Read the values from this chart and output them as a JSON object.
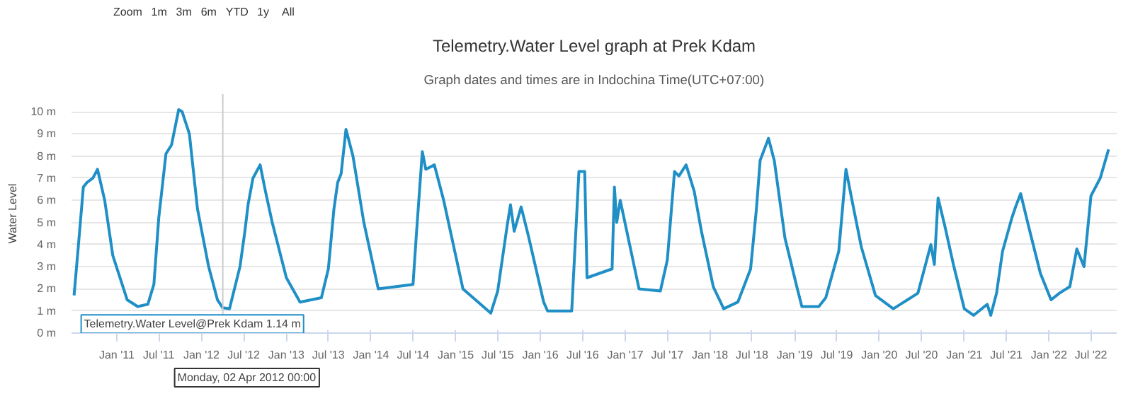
{
  "chart_data": {
    "type": "line",
    "title": "Telemetry.Water Level graph at Prek Kdam",
    "subtitle": "Graph dates and times are in Indochina Time(UTC+07:00)",
    "ylabel": "Water Level",
    "x": [
      "2010-07-01",
      "2010-07-20",
      "2010-08-10",
      "2010-08-25",
      "2010-09-20",
      "2010-10-10",
      "2010-11-10",
      "2010-12-15",
      "2011-02-15",
      "2011-04-01",
      "2011-05-15",
      "2011-06-10",
      "2011-07-01",
      "2011-08-01",
      "2011-08-25",
      "2011-09-25",
      "2011-10-10",
      "2011-11-10",
      "2011-12-15",
      "2012-02-01",
      "2012-03-10",
      "2012-04-02",
      "2012-05-01",
      "2012-06-15",
      "2012-07-05",
      "2012-07-20",
      "2012-08-10",
      "2012-09-10",
      "2012-10-01",
      "2012-11-01",
      "2013-01-01",
      "2013-03-01",
      "2013-06-01",
      "2013-07-01",
      "2013-07-25",
      "2013-08-10",
      "2013-08-25",
      "2013-09-15",
      "2013-10-15",
      "2013-12-01",
      "2014-02-01",
      "2014-07-01",
      "2014-07-15",
      "2014-08-10",
      "2014-08-25",
      "2014-10-01",
      "2014-11-10",
      "2015-02-01",
      "2015-06-01",
      "2015-07-01",
      "2015-08-10",
      "2015-08-25",
      "2015-09-10",
      "2015-10-10",
      "2015-11-10",
      "2016-01-15",
      "2016-02-01",
      "2016-05-15",
      "2016-06-15",
      "2016-07-10",
      "2016-07-20",
      "2016-11-05",
      "2016-11-15",
      "2016-11-25",
      "2016-12-10",
      "2017-03-01",
      "2017-06-01",
      "2017-07-01",
      "2017-08-01",
      "2017-08-20",
      "2017-09-20",
      "2017-10-25",
      "2017-11-25",
      "2018-01-15",
      "2018-03-01",
      "2018-05-01",
      "2018-06-25",
      "2018-07-20",
      "2018-08-05",
      "2018-09-10",
      "2018-10-05",
      "2018-11-20",
      "2019-01-10",
      "2019-02-01",
      "2019-04-15",
      "2019-05-15",
      "2019-07-10",
      "2019-08-10",
      "2019-09-05",
      "2019-10-15",
      "2019-12-15",
      "2020-03-01",
      "2020-05-01",
      "2020-06-15",
      "2020-08-10",
      "2020-08-25",
      "2020-09-10",
      "2020-10-10",
      "2020-11-15",
      "2021-01-01",
      "2021-02-10",
      "2021-04-10",
      "2021-04-25",
      "2021-05-20",
      "2021-06-15",
      "2021-07-25",
      "2021-08-10",
      "2021-09-01",
      "2021-10-01",
      "2021-11-25",
      "2022-01-10",
      "2022-02-15",
      "2022-04-01",
      "2022-05-01",
      "2022-06-01",
      "2022-07-01",
      "2022-08-10",
      "2022-09-15"
    ],
    "series": [
      {
        "color": "#1f8fc6",
        "values": [
          1.7,
          4.0,
          6.6,
          6.8,
          7.0,
          7.4,
          6.0,
          3.5,
          1.5,
          1.2,
          1.3,
          2.2,
          5.2,
          8.1,
          8.5,
          10.1,
          10.0,
          9.0,
          5.6,
          3.0,
          1.5,
          1.14,
          1.1,
          3.0,
          4.5,
          5.8,
          7.0,
          7.6,
          6.5,
          5.0,
          2.5,
          1.4,
          1.6,
          2.9,
          5.6,
          6.8,
          7.2,
          9.2,
          8.0,
          5.0,
          2.0,
          2.2,
          4.4,
          8.2,
          7.4,
          7.6,
          6.0,
          2.0,
          0.9,
          1.9,
          4.8,
          5.8,
          4.6,
          5.7,
          4.4,
          1.4,
          1.0,
          1.0,
          7.3,
          7.3,
          2.5,
          2.9,
          6.6,
          5.0,
          6.0,
          2.0,
          1.9,
          3.3,
          7.3,
          7.1,
          7.6,
          6.4,
          4.6,
          2.1,
          1.1,
          1.4,
          2.9,
          5.6,
          7.8,
          8.8,
          7.8,
          4.3,
          2.1,
          1.2,
          1.2,
          1.6,
          3.7,
          7.4,
          6.0,
          3.9,
          1.7,
          1.1,
          1.5,
          1.8,
          4.0,
          3.1,
          6.1,
          4.8,
          3.1,
          1.1,
          0.8,
          1.3,
          0.8,
          1.8,
          3.7,
          5.2,
          5.7,
          6.3,
          5.0,
          2.7,
          1.5,
          1.8,
          2.1,
          3.8,
          3.0,
          6.2,
          7.0,
          8.3
        ]
      }
    ],
    "xlim": [
      "2010-06-20",
      "2022-10-20"
    ],
    "xticks": [
      {
        "value": "2011-01-01",
        "label": "Jan '11"
      },
      {
        "value": "2011-07-01",
        "label": "Jul '11"
      },
      {
        "value": "2012-01-01",
        "label": "Jan '12"
      },
      {
        "value": "2012-07-01",
        "label": "Jul '12"
      },
      {
        "value": "2013-01-01",
        "label": "Jan '13"
      },
      {
        "value": "2013-07-01",
        "label": "Jul '13"
      },
      {
        "value": "2014-01-01",
        "label": "Jan '14"
      },
      {
        "value": "2014-07-01",
        "label": "Jul '14"
      },
      {
        "value": "2015-01-01",
        "label": "Jan '15"
      },
      {
        "value": "2015-07-01",
        "label": "Jul '15"
      },
      {
        "value": "2016-01-01",
        "label": "Jan '16"
      },
      {
        "value": "2016-07-01",
        "label": "Jul '16"
      },
      {
        "value": "2017-01-01",
        "label": "Jan '17"
      },
      {
        "value": "2017-07-01",
        "label": "Jul '17"
      },
      {
        "value": "2018-01-01",
        "label": "Jan '18"
      },
      {
        "value": "2018-07-01",
        "label": "Jul '18"
      },
      {
        "value": "2019-01-01",
        "label": "Jan '19"
      },
      {
        "value": "2019-07-01",
        "label": "Jul '19"
      },
      {
        "value": "2020-01-01",
        "label": "Jan '20"
      },
      {
        "value": "2020-07-01",
        "label": "Jul '20"
      },
      {
        "value": "2021-01-01",
        "label": "Jan '21"
      },
      {
        "value": "2021-07-01",
        "label": "Jul '21"
      },
      {
        "value": "2022-01-01",
        "label": "Jan '22"
      },
      {
        "value": "2022-07-01",
        "label": "Jul '22"
      }
    ],
    "ylim": [
      0,
      10.8
    ],
    "yticks": [
      {
        "value": 0,
        "label": "0 m"
      },
      {
        "value": 1,
        "label": "1 m"
      },
      {
        "value": 2,
        "label": "2 m"
      },
      {
        "value": 3,
        "label": "3 m"
      },
      {
        "value": 4,
        "label": "4 m"
      },
      {
        "value": 5,
        "label": "5 m"
      },
      {
        "value": 6,
        "label": "6 m"
      },
      {
        "value": 7,
        "label": "7 m"
      },
      {
        "value": 8,
        "label": "8 m"
      },
      {
        "value": 9,
        "label": "9 m"
      },
      {
        "value": 10,
        "label": "10 m"
      }
    ],
    "grid": "y",
    "marker": "none",
    "line_style": "solid",
    "ref_lines": [
      {
        "axis": "x",
        "value": "2012-04-02",
        "label": null,
        "color": "#cccccc"
      }
    ],
    "annotations": [
      "Zoom",
      "1m",
      "3m",
      "6m",
      "YTD",
      "1y",
      "All",
      {
        "text": "Telemetry.Water Level@Prek Kdam 1.14 m",
        "x": "2012-04-02",
        "y": 1.14
      },
      "Monday, 02 Apr 2012 00:00"
    ]
  }
}
